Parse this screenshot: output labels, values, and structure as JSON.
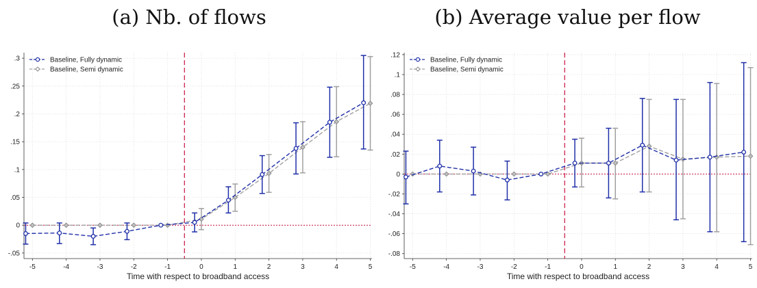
{
  "colors": {
    "fully": "#1f2fa8",
    "semi": "#a0a0a0",
    "ref": "#c8103e",
    "grid": "#e2e2e2"
  },
  "chart_data": [
    {
      "type": "line",
      "title": "(a) Nb. of flows",
      "xlabel": "Time with respect to broadband access",
      "ylabel": "",
      "xlim": [
        -5.25,
        5.05
      ],
      "ylim": [
        -0.06,
        0.31
      ],
      "xticks": [
        -5,
        -4,
        -3,
        -2,
        -1,
        0,
        1,
        2,
        3,
        4,
        5
      ],
      "yticks": [
        -0.05,
        0,
        0.05,
        0.1,
        0.15,
        0.2,
        0.25,
        0.3
      ],
      "ytick_labels": [
        "-.05",
        "0",
        ".05",
        ".1",
        ".15",
        ".2",
        ".25",
        ".3"
      ],
      "grid": true,
      "legend": "top-left",
      "event_line_x": -0.5,
      "zero_line": true,
      "series": [
        {
          "name": "Baseline, Fully dynamic",
          "style": "fully",
          "x": [
            -5.2,
            -4.2,
            -3.2,
            -2.2,
            -1.2,
            -0.2,
            0.8,
            1.8,
            2.8,
            3.8,
            4.8
          ],
          "y": [
            -0.015,
            -0.014,
            -0.02,
            -0.011,
            0.0,
            0.005,
            0.045,
            0.091,
            0.138,
            0.185,
            0.22
          ],
          "lo": [
            -0.034,
            -0.033,
            -0.035,
            -0.026,
            0.0,
            -0.012,
            0.022,
            0.057,
            0.092,
            0.122,
            0.137
          ],
          "hi": [
            0.004,
            0.004,
            -0.005,
            0.004,
            0.0,
            0.022,
            0.069,
            0.125,
            0.184,
            0.248,
            0.305
          ]
        },
        {
          "name": "Baseline, Semi dynamic",
          "style": "semi",
          "x": [
            -5.0,
            -4.0,
            -3.0,
            -2.0,
            -1.0,
            0.0,
            1.0,
            2.0,
            3.0,
            4.0,
            5.0
          ],
          "y": [
            0.0,
            0.0,
            0.0,
            0.0,
            0.0,
            0.011,
            0.05,
            0.093,
            0.14,
            0.186,
            0.219
          ],
          "lo": [
            0.0,
            0.0,
            0.0,
            0.0,
            0.0,
            -0.008,
            0.025,
            0.059,
            0.094,
            0.123,
            0.135
          ],
          "hi": [
            0.0,
            0.0,
            0.0,
            0.0,
            0.0,
            0.03,
            0.074,
            0.127,
            0.186,
            0.249,
            0.303
          ]
        }
      ]
    },
    {
      "type": "line",
      "title": "(b) Average value per flow",
      "xlabel": "Time with respect to broadband access",
      "ylabel": "",
      "xlim": [
        -5.25,
        5.05
      ],
      "ylim": [
        -0.085,
        0.122
      ],
      "xticks": [
        -5,
        -4,
        -3,
        -2,
        -1,
        0,
        1,
        2,
        3,
        4,
        5
      ],
      "yticks": [
        -0.08,
        -0.06,
        -0.04,
        -0.02,
        0,
        0.02,
        0.04,
        0.06,
        0.08,
        0.1,
        0.12
      ],
      "ytick_labels": [
        "-.08",
        "-.06",
        "-.04",
        "-.02",
        "0",
        ".02",
        ".04",
        ".06",
        ".08",
        ".1",
        ".12"
      ],
      "grid": true,
      "legend": "top-left",
      "event_line_x": -0.5,
      "zero_line": true,
      "series": [
        {
          "name": "Baseline, Fully dynamic",
          "style": "fully",
          "x": [
            -5.2,
            -4.2,
            -3.2,
            -2.2,
            -1.2,
            -0.2,
            0.8,
            1.8,
            2.8,
            3.8,
            4.8
          ],
          "y": [
            -0.003,
            0.008,
            0.003,
            -0.006,
            0.0,
            0.011,
            0.011,
            0.029,
            0.014,
            0.017,
            0.022
          ],
          "lo": [
            -0.03,
            -0.018,
            -0.021,
            -0.026,
            0.0,
            -0.013,
            -0.024,
            -0.018,
            -0.046,
            -0.058,
            -0.068
          ],
          "hi": [
            0.023,
            0.034,
            0.027,
            0.013,
            0.0,
            0.035,
            0.046,
            0.076,
            0.075,
            0.092,
            0.112
          ]
        },
        {
          "name": "Baseline, Semi dynamic",
          "style": "semi",
          "x": [
            -5.0,
            -4.0,
            -3.0,
            -2.0,
            -1.0,
            0.0,
            1.0,
            2.0,
            3.0,
            4.0,
            5.0
          ],
          "y": [
            0.0,
            0.0,
            0.0,
            0.0,
            0.0,
            0.011,
            0.011,
            0.028,
            0.015,
            0.017,
            0.018
          ],
          "lo": [
            0.0,
            0.0,
            0.0,
            0.0,
            0.0,
            -0.013,
            -0.025,
            -0.018,
            -0.045,
            -0.058,
            -0.071
          ],
          "hi": [
            0.0,
            0.0,
            0.0,
            0.0,
            0.0,
            0.036,
            0.046,
            0.075,
            0.075,
            0.091,
            0.107
          ]
        }
      ]
    }
  ]
}
